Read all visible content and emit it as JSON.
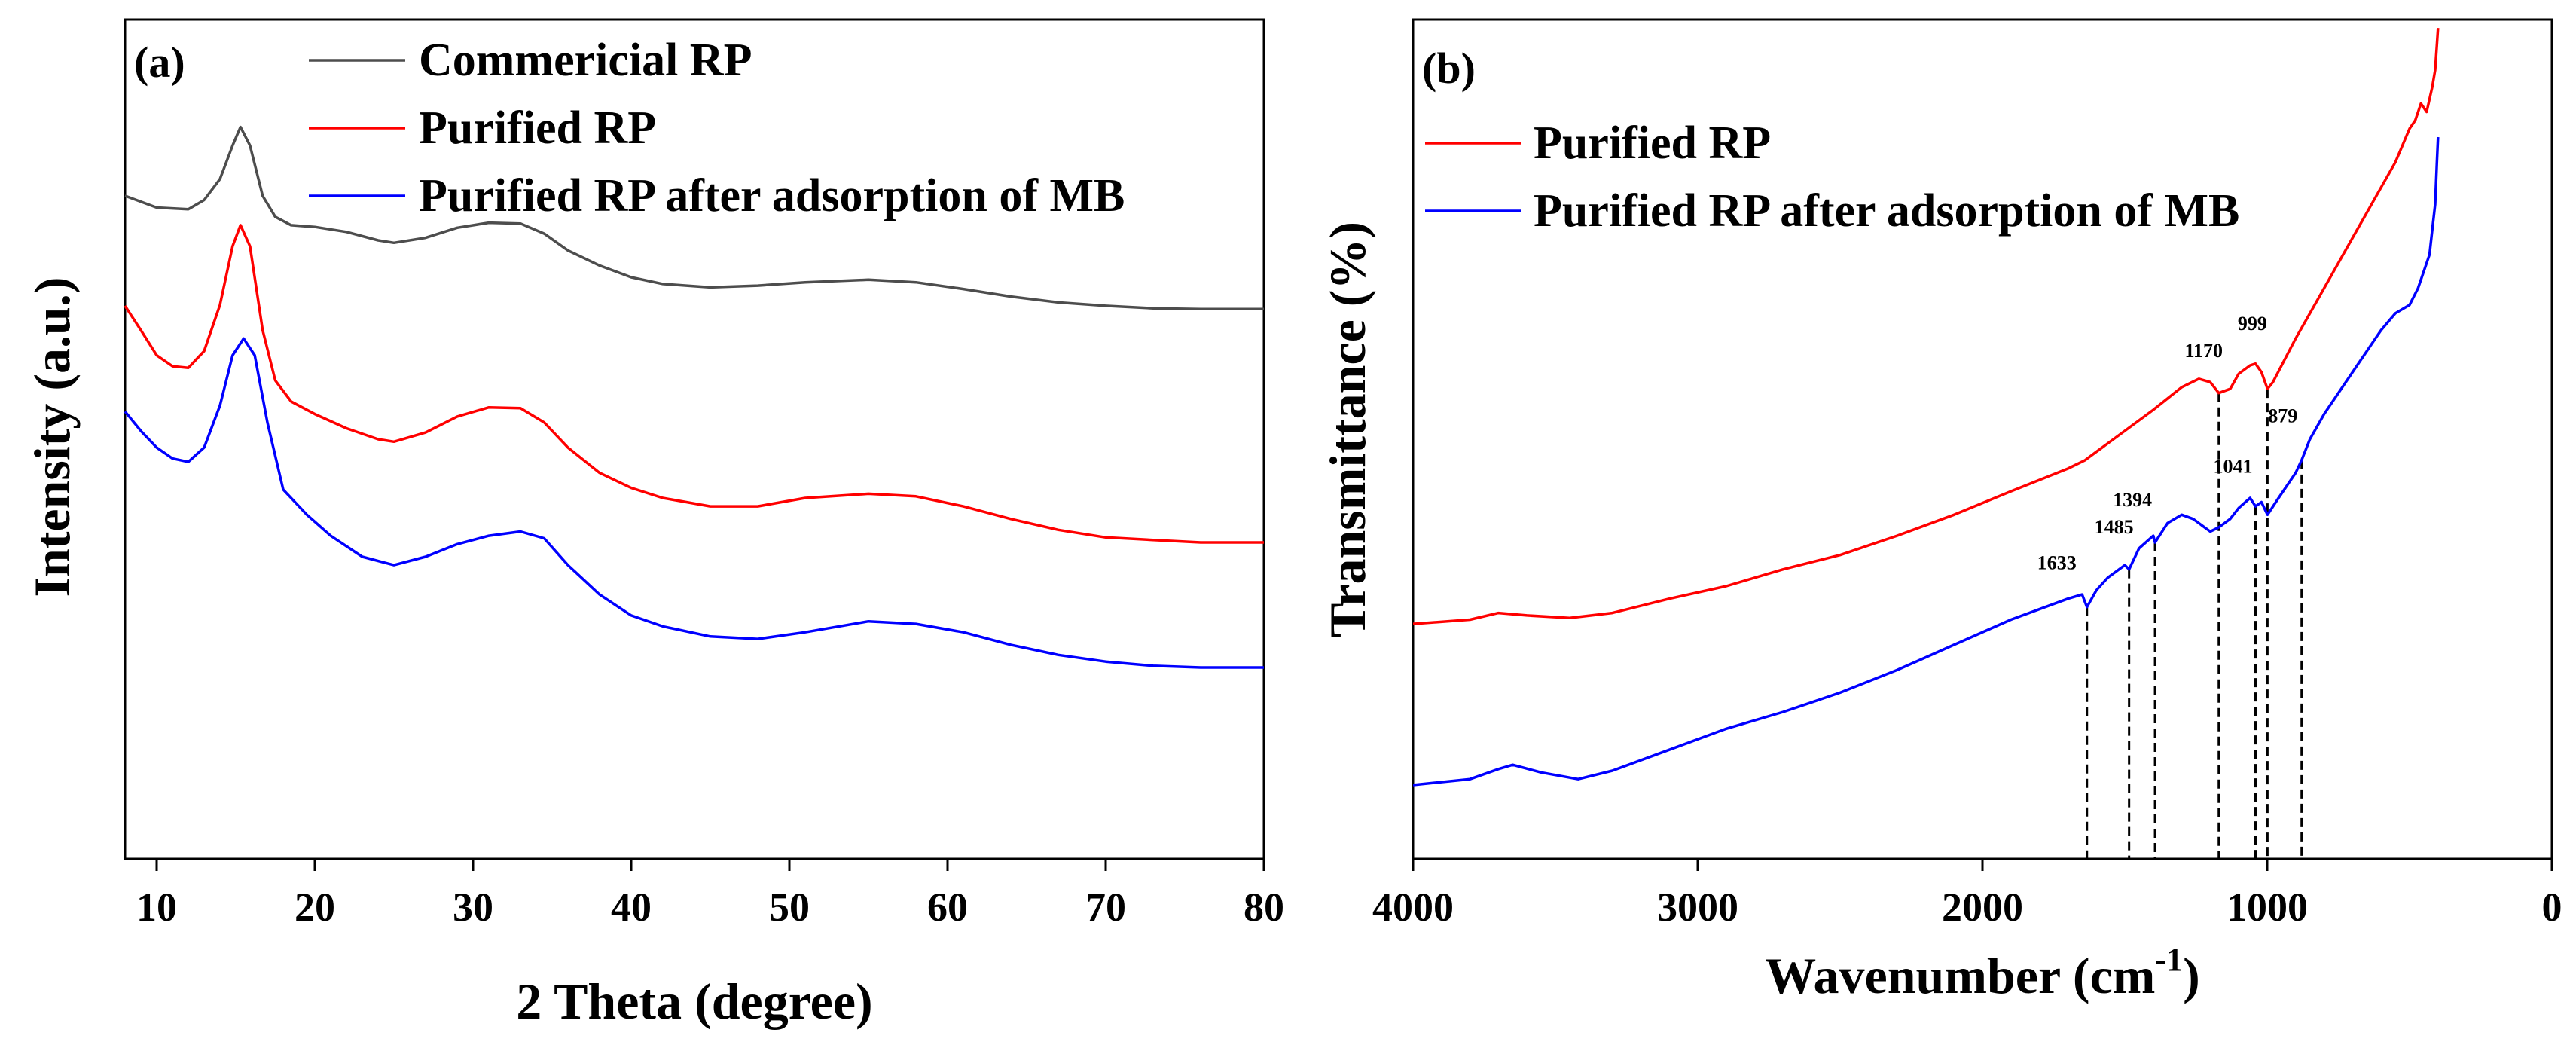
{
  "chart_data": [
    {
      "type": "line",
      "panel_label": "(a)",
      "title": "",
      "xlabel": "2 Theta (degree)",
      "ylabel": "Intensity (a.u.)",
      "xlim": [
        8,
        80
      ],
      "ylim": [
        0,
        1
      ],
      "y_ticks_shown": false,
      "x_ticks": [
        10,
        20,
        30,
        40,
        50,
        60,
        70,
        80
      ],
      "x_tick_labels": [
        "10",
        "20",
        "30",
        "40",
        "50",
        "60",
        "70",
        "80"
      ],
      "legend_position": "top-right",
      "series": [
        {
          "name": "Commericial RP",
          "color": "#4d4d4d",
          "x": [
            8,
            10,
            12,
            13,
            14,
            14.8,
            15.3,
            15.9,
            16.7,
            17.5,
            18.5,
            20,
            22,
            24,
            25,
            27,
            29,
            31,
            33,
            34.5,
            36,
            38,
            40,
            42,
            45,
            48,
            51,
            55,
            58,
            61,
            64,
            67,
            70,
            73,
            76,
            80
          ],
          "y": [
            0.79,
            0.776,
            0.774,
            0.785,
            0.81,
            0.85,
            0.872,
            0.85,
            0.79,
            0.765,
            0.755,
            0.753,
            0.747,
            0.737,
            0.734,
            0.74,
            0.752,
            0.758,
            0.757,
            0.745,
            0.725,
            0.707,
            0.693,
            0.685,
            0.681,
            0.683,
            0.687,
            0.69,
            0.687,
            0.679,
            0.67,
            0.663,
            0.659,
            0.656,
            0.655,
            0.655
          ]
        },
        {
          "name": "Purified RP",
          "color": "#ff0000",
          "x": [
            8,
            9,
            10,
            11,
            12,
            13,
            14,
            14.8,
            15.3,
            15.9,
            16.7,
            17.5,
            18.5,
            20,
            22,
            24,
            25,
            27,
            29,
            31,
            33,
            34.5,
            36,
            38,
            40,
            42,
            45,
            48,
            51,
            55,
            58,
            61,
            64,
            67,
            70,
            73,
            76,
            80
          ],
          "y": [
            0.659,
            0.63,
            0.6,
            0.587,
            0.585,
            0.605,
            0.66,
            0.73,
            0.755,
            0.73,
            0.63,
            0.57,
            0.545,
            0.53,
            0.513,
            0.5,
            0.497,
            0.508,
            0.527,
            0.538,
            0.537,
            0.52,
            0.49,
            0.46,
            0.442,
            0.43,
            0.42,
            0.42,
            0.43,
            0.435,
            0.432,
            0.42,
            0.405,
            0.392,
            0.383,
            0.38,
            0.377,
            0.377
          ]
        },
        {
          "name": "Purified RP after adsorption of MB",
          "color": "#0000ff",
          "x": [
            8,
            9,
            10,
            11,
            12,
            13,
            14,
            14.8,
            15.5,
            16.2,
            17,
            18,
            19.5,
            21,
            23,
            25,
            27,
            29,
            31,
            33,
            34.5,
            36,
            38,
            40,
            42,
            45,
            48,
            51,
            55,
            58,
            61,
            64,
            67,
            70,
            73,
            76,
            80
          ],
          "y": [
            0.533,
            0.51,
            0.49,
            0.477,
            0.473,
            0.49,
            0.54,
            0.6,
            0.62,
            0.6,
            0.52,
            0.44,
            0.41,
            0.385,
            0.36,
            0.35,
            0.36,
            0.375,
            0.385,
            0.39,
            0.382,
            0.35,
            0.315,
            0.29,
            0.277,
            0.265,
            0.262,
            0.27,
            0.283,
            0.28,
            0.27,
            0.255,
            0.243,
            0.235,
            0.23,
            0.228,
            0.228
          ]
        }
      ]
    },
    {
      "type": "line",
      "panel_label": "(b)",
      "title": "",
      "xlabel": "Wavenumber (cm",
      "xlabel_superscript": "-1",
      "xlabel_suffix": ")",
      "ylabel": "Transmittance (%)",
      "xlim": [
        4000,
        0
      ],
      "ylim": [
        0,
        1
      ],
      "y_ticks_shown": false,
      "x_ticks": [
        4000,
        3000,
        2000,
        1000,
        0
      ],
      "x_tick_labels": [
        "4000",
        "3000",
        "2000",
        "1000",
        "0"
      ],
      "legend_position": "top-left",
      "series": [
        {
          "name": "Purified RP",
          "color": "#ff0000",
          "x": [
            4000,
            3800,
            3700,
            3600,
            3450,
            3300,
            3100,
            2900,
            2700,
            2500,
            2300,
            2100,
            1900,
            1700,
            1640,
            1600,
            1500,
            1400,
            1300,
            1240,
            1200,
            1170,
            1130,
            1100,
            1060,
            1041,
            1020,
            999,
            980,
            900,
            800,
            700,
            600,
            550,
            500,
            480,
            460,
            440,
            420,
            410,
            404,
            400
          ],
          "y": [
            0.28,
            0.285,
            0.293,
            0.29,
            0.287,
            0.293,
            0.31,
            0.325,
            0.345,
            0.362,
            0.385,
            0.41,
            0.438,
            0.465,
            0.475,
            0.485,
            0.51,
            0.535,
            0.562,
            0.572,
            0.568,
            0.555,
            0.56,
            0.578,
            0.588,
            0.59,
            0.58,
            0.56,
            0.568,
            0.62,
            0.68,
            0.74,
            0.8,
            0.83,
            0.87,
            0.88,
            0.9,
            0.89,
            0.92,
            0.94,
            0.97,
            0.99
          ]
        },
        {
          "name": "Purified RP after adsorption of MB",
          "color": "#0000ff",
          "x": [
            4000,
            3800,
            3700,
            3650,
            3550,
            3420,
            3300,
            3100,
            2900,
            2700,
            2500,
            2300,
            2100,
            1900,
            1700,
            1650,
            1633,
            1600,
            1560,
            1500,
            1485,
            1450,
            1400,
            1394,
            1350,
            1300,
            1260,
            1200,
            1170,
            1130,
            1100,
            1060,
            1041,
            1020,
            999,
            960,
            900,
            879,
            850,
            800,
            700,
            600,
            550,
            500,
            470,
            450,
            430,
            420,
            410,
            404,
            400
          ],
          "y": [
            0.088,
            0.095,
            0.107,
            0.112,
            0.103,
            0.095,
            0.105,
            0.13,
            0.155,
            0.175,
            0.198,
            0.225,
            0.255,
            0.285,
            0.31,
            0.315,
            0.3,
            0.32,
            0.335,
            0.35,
            0.345,
            0.37,
            0.385,
            0.377,
            0.4,
            0.41,
            0.405,
            0.39,
            0.395,
            0.405,
            0.418,
            0.43,
            0.42,
            0.425,
            0.41,
            0.43,
            0.46,
            0.475,
            0.5,
            0.53,
            0.58,
            0.63,
            0.65,
            0.66,
            0.68,
            0.7,
            0.72,
            0.75,
            0.78,
            0.83,
            0.86
          ]
        }
      ],
      "annotations": [
        {
          "label": "1633",
          "x": 1633,
          "y_line_top": 0.3,
          "label_y": 0.345,
          "label_dx": -40
        },
        {
          "label": "1485",
          "x": 1485,
          "y_line_top": 0.345,
          "label_y": 0.388,
          "label_dx": -20
        },
        {
          "label": "1394",
          "x": 1394,
          "y_line_top": 0.377,
          "label_y": 0.42,
          "label_dx": -30
        },
        {
          "label": "1170",
          "x": 1170,
          "y_line_top": 0.555,
          "label_y": 0.598,
          "label_dx": -20
        },
        {
          "label": "999",
          "x": 999,
          "y_line_top": 0.56,
          "label_y": 0.63,
          "label_dx": -20
        },
        {
          "label": "1041",
          "x": 1041,
          "y_line_top": 0.42,
          "label_y": 0.46,
          "label_dx": -30
        },
        {
          "label": "879",
          "x": 879,
          "y_line_top": 0.475,
          "label_y": 0.52,
          "label_dx": -25
        }
      ]
    }
  ]
}
